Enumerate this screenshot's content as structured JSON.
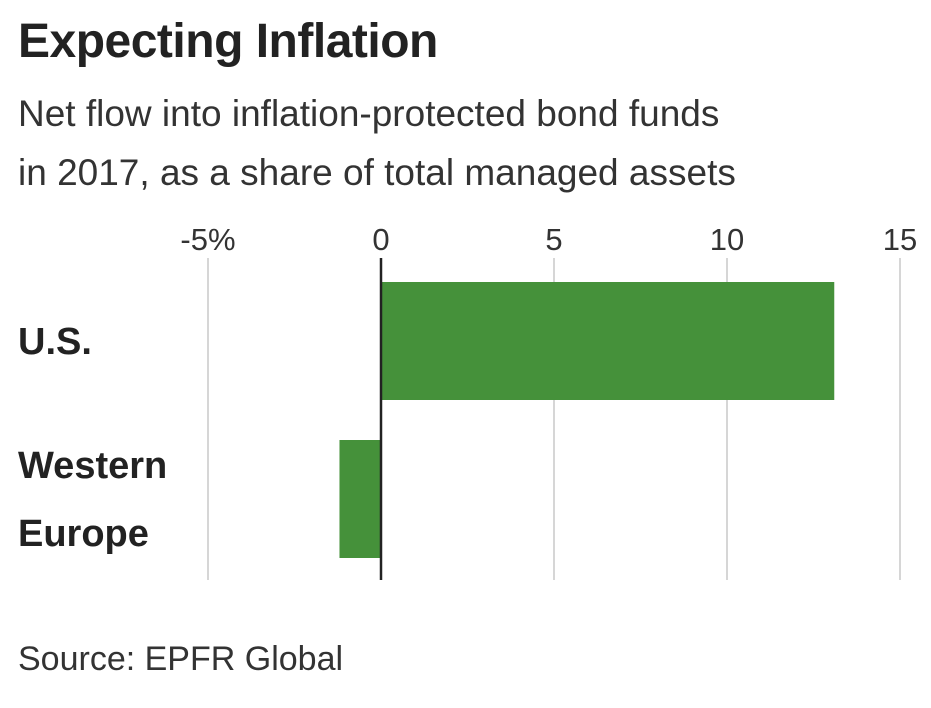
{
  "title": "Expecting Inflation",
  "subtitle": [
    "Net flow into inflation-protected bond funds",
    "in 2017, as a share of total managed assets"
  ],
  "source": "Source: EPFR Global",
  "colors": {
    "bar": "#45913a",
    "gridline": "#d6d6d6",
    "zero_line": "#222222"
  },
  "chart_data": {
    "type": "bar",
    "orientation": "horizontal",
    "categories": [
      [
        "U.S."
      ],
      [
        "Western",
        "Europe"
      ]
    ],
    "values": [
      13.1,
      -1.2
    ],
    "xlim": [
      -5,
      15
    ],
    "ticks": [
      -5,
      0,
      5,
      10,
      15
    ],
    "tick_labels": [
      "-5%",
      "0",
      "5",
      "10",
      "15"
    ],
    "grid": true,
    "legend": "none"
  }
}
